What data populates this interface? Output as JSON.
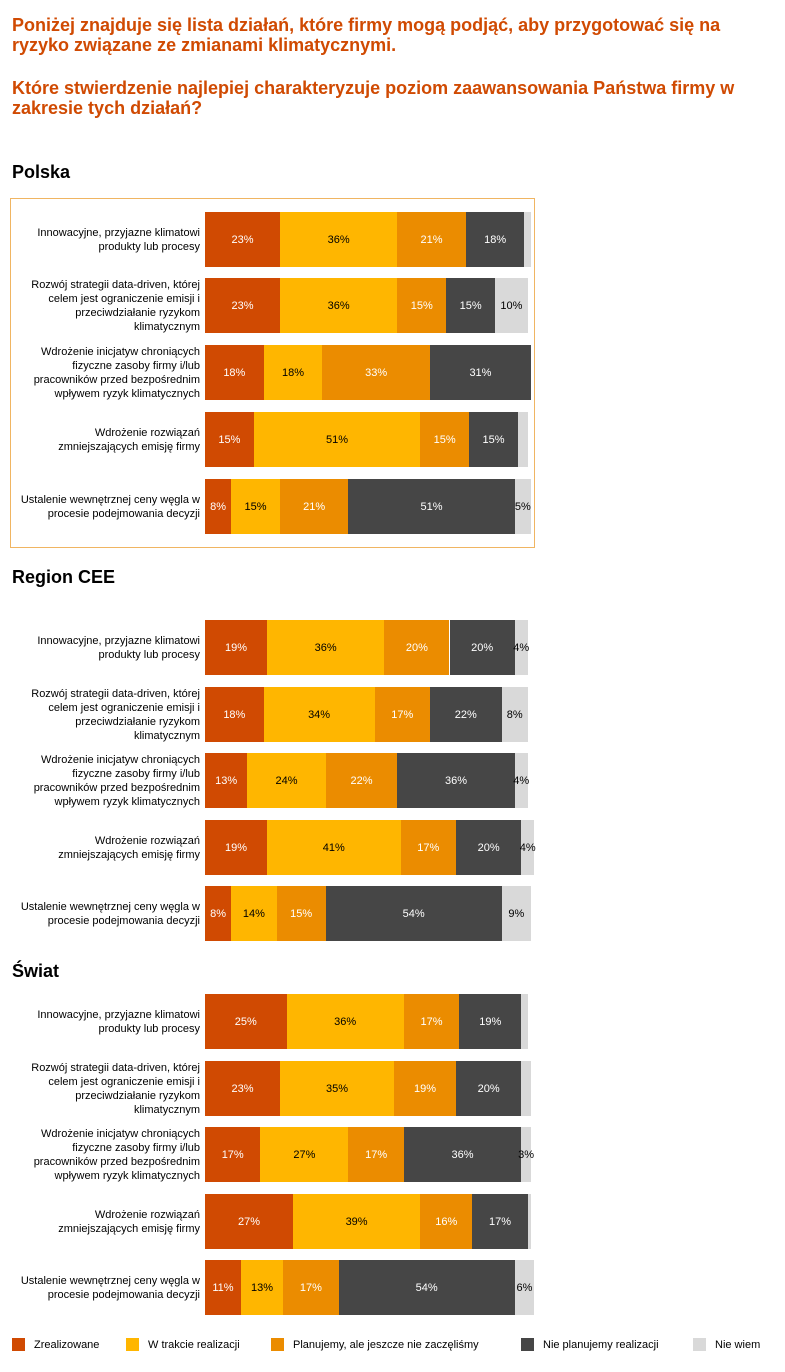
{
  "question_line1": "Poniżej znajduje się lista działań, które firmy mogą podjąć, aby przygotować się na ryzyko związane ze zmianami klimatycznymi.",
  "question_line2": "Które stwierdzenie najlepiej charakteryzuje poziom zaawansowania Państwa firmy w zakresie tych działań?",
  "colors": {
    "Zrealizowane": "#d04a02",
    "W trakcie realizacji": "#ffb600",
    "Planujemy, ale jeszcze nie zaczęliśmy": "#eb8c00",
    "Nie planujemy realizacji": "#464646",
    "Nie wiem": "#d9d9d9"
  },
  "legend": [
    "Zrealizowane",
    "W trakcie realizacji",
    "Planujemy, ale jeszcze nie zaczęliśmy",
    "Nie planujemy realizacji",
    "Nie wiem"
  ],
  "chart_data": [
    {
      "type": "bar",
      "orientation": "horizontal",
      "stacked": true,
      "title": "Polska",
      "categories": [
        "Innowacyjne, przyjazne klimatowi produkty lub procesy",
        "Rozwój strategii data-driven, której celem jest ograniczenie emisji i przeciwdziałanie ryzykom klimatycznym",
        "Wdrożenie inicjatyw chroniących fizyczne zasoby firmy i/lub pracowników przed bezpośrednim wpływem ryzyk klimatycznych",
        "Wdrożenie rozwiązań zmniejszających emisję firmy",
        "Ustalenie wewnętrznej ceny węgla w procesie podejmowania decyzji"
      ],
      "series": [
        {
          "name": "Zrealizowane",
          "values": [
            23,
            23,
            18,
            15,
            8
          ],
          "labels": [
            "23%",
            "23%",
            "18%",
            "15%",
            "8%"
          ]
        },
        {
          "name": "W trakcie realizacji",
          "values": [
            36,
            36,
            18,
            51,
            15
          ],
          "labels": [
            "36%",
            "36%",
            "18%",
            "51%",
            "15%"
          ]
        },
        {
          "name": "Planujemy, ale jeszcze nie zaczęliśmy",
          "values": [
            21,
            15,
            33,
            15,
            21
          ],
          "labels": [
            "21%",
            "15%",
            "33%",
            "15%",
            "21%"
          ]
        },
        {
          "name": "Nie planujemy realizacji",
          "values": [
            18,
            15,
            31,
            15,
            51
          ],
          "labels": [
            "18%",
            "15%",
            "31%",
            "15%",
            "51%"
          ]
        },
        {
          "name": "Nie wiem",
          "values": [
            2,
            10,
            0,
            3,
            5
          ],
          "labels": [
            "",
            "10%",
            "",
            "",
            "5%"
          ]
        }
      ]
    },
    {
      "type": "bar",
      "orientation": "horizontal",
      "stacked": true,
      "title": "Region CEE",
      "categories": [
        "Innowacyjne, przyjazne klimatowi produkty lub procesy",
        "Rozwój strategii data-driven, której celem jest ograniczenie emisji i przeciwdziałanie ryzykom klimatycznym",
        "Wdrożenie inicjatyw chroniących fizyczne zasoby firmy i/lub pracowników przed bezpośrednim wpływem ryzyk klimatycznych",
        "Wdrożenie rozwiązań zmniejszających emisję firmy",
        "Ustalenie wewnętrznej ceny węgla w procesie podejmowania decyzji"
      ],
      "series": [
        {
          "name": "Zrealizowane",
          "values": [
            19,
            18,
            13,
            19,
            8
          ],
          "labels": [
            "19%",
            "18%",
            "13%",
            "19%",
            "8%"
          ]
        },
        {
          "name": "W trakcie realizacji",
          "values": [
            36,
            34,
            24,
            41,
            14
          ],
          "labels": [
            "36%",
            "34%",
            "24%",
            "41%",
            "14%"
          ]
        },
        {
          "name": "Planujemy, ale jeszcze nie zaczęliśmy",
          "values": [
            20,
            17,
            22,
            17,
            15
          ],
          "labels": [
            "20%",
            "17%",
            "22%",
            "17%",
            "15%"
          ]
        },
        {
          "name": "Nie planujemy realizacji",
          "values": [
            20,
            22,
            36,
            20,
            54
          ],
          "labels": [
            "20%",
            "22%",
            "36%",
            "20%",
            "54%"
          ]
        },
        {
          "name": "Nie wiem",
          "values": [
            4,
            8,
            4,
            4,
            9
          ],
          "labels": [
            "4%",
            "8%",
            "4%",
            "4%",
            "9%"
          ]
        }
      ]
    },
    {
      "type": "bar",
      "orientation": "horizontal",
      "stacked": true,
      "title": "Świat",
      "categories": [
        "Innowacyjne, przyjazne klimatowi produkty lub procesy",
        "Rozwój strategii data-driven, której celem jest ograniczenie emisji i przeciwdziałanie ryzykom klimatycznym",
        "Wdrożenie inicjatyw chroniących fizyczne zasoby firmy i/lub pracowników przed bezpośrednim wpływem ryzyk klimatycznych",
        "Wdrożenie rozwiązań zmniejszających emisję firmy",
        "Ustalenie wewnętrznej ceny węgla w procesie podejmowania decyzji"
      ],
      "series": [
        {
          "name": "Zrealizowane",
          "values": [
            25,
            23,
            17,
            27,
            11
          ],
          "labels": [
            "25%",
            "23%",
            "17%",
            "27%",
            "11%"
          ]
        },
        {
          "name": "W trakcie realizacji",
          "values": [
            36,
            35,
            27,
            39,
            13
          ],
          "labels": [
            "36%",
            "35%",
            "27%",
            "39%",
            "13%"
          ]
        },
        {
          "name": "Planujemy, ale jeszcze nie zaczęliśmy",
          "values": [
            17,
            19,
            17,
            16,
            17
          ],
          "labels": [
            "17%",
            "19%",
            "17%",
            "16%",
            "17%"
          ]
        },
        {
          "name": "Nie planujemy realizacji",
          "values": [
            19,
            20,
            36,
            17,
            54
          ],
          "labels": [
            "19%",
            "20%",
            "36%",
            "17%",
            "54%"
          ]
        },
        {
          "name": "Nie wiem",
          "values": [
            2,
            3,
            3,
            1,
            6
          ],
          "labels": [
            "",
            "",
            "3%",
            "",
            "6%"
          ]
        }
      ]
    }
  ]
}
